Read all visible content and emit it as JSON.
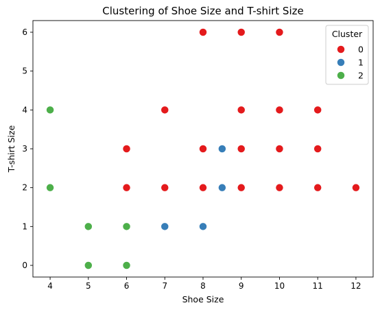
{
  "chart_data": {
    "type": "scatter",
    "title": "Clustering of Shoe Size and T-shirt Size",
    "xlabel": "Shoe Size",
    "ylabel": "T-shirt Size",
    "xlim": [
      3.55,
      12.45
    ],
    "ylim": [
      -0.3,
      6.3
    ],
    "xticks": [
      4,
      5,
      6,
      7,
      8,
      9,
      10,
      11,
      12
    ],
    "yticks": [
      0,
      1,
      2,
      3,
      4,
      5,
      6
    ],
    "grid": false,
    "legend": {
      "title": "Cluster",
      "placement": "top-right"
    },
    "series": [
      {
        "name": "0",
        "color": "#e41a1c",
        "points": [
          [
            8,
            6
          ],
          [
            9,
            6
          ],
          [
            10,
            6
          ],
          [
            7,
            4
          ],
          [
            9,
            4
          ],
          [
            10,
            4
          ],
          [
            11,
            4
          ],
          [
            6,
            3
          ],
          [
            8,
            3
          ],
          [
            9,
            3
          ],
          [
            10,
            3
          ],
          [
            11,
            3
          ],
          [
            6,
            2
          ],
          [
            7,
            2
          ],
          [
            8,
            2
          ],
          [
            9,
            2
          ],
          [
            10,
            2
          ],
          [
            11,
            2
          ],
          [
            12,
            2
          ]
        ]
      },
      {
        "name": "1",
        "color": "#377eb8",
        "points": [
          [
            8.5,
            3
          ],
          [
            8.5,
            2
          ],
          [
            7,
            1
          ],
          [
            8,
            1
          ]
        ]
      },
      {
        "name": "2",
        "color": "#4daf4a",
        "points": [
          [
            4,
            4
          ],
          [
            4,
            2
          ],
          [
            5,
            1
          ],
          [
            6,
            1
          ],
          [
            5,
            0
          ],
          [
            6,
            0
          ]
        ]
      }
    ]
  }
}
